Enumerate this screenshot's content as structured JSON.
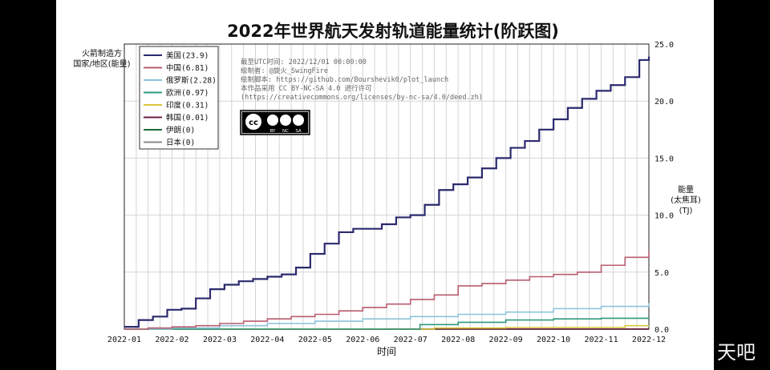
{
  "chart_data": {
    "type": "line",
    "title": "2022年世界航天发射轨道能量统计(阶跃图)",
    "xlabel": "时间",
    "ylabel_left": [
      "火箭制造方",
      "国家/地区(能量)"
    ],
    "ylabel_right": [
      "能量",
      "(太焦耳)",
      "(TJ)"
    ],
    "ylim": [
      0,
      25
    ],
    "yticks": [
      "0.0",
      "5.0",
      "10.0",
      "15.0",
      "20.0",
      "25.0"
    ],
    "xticks": [
      "2022-01",
      "2022-02",
      "2022-03",
      "2022-04",
      "2022-05",
      "2022-06",
      "2022-07",
      "2022-08",
      "2022-09",
      "2022-10",
      "2022-11",
      "2022-12"
    ],
    "grid": true,
    "legend_position": "top-left",
    "annotation": [
      "截至UTC时间: 2022/12/01 00:00:00",
      "绘制者: @旋火_SwingFire",
      "绘制脚本: https://github.com/Bourshevik0/plot_launch",
      "本作品采用 CC BY-NC-SA 4.0 进行许可",
      "(https://creativecommons.org/licenses/by-nc-sa/4.0/deed.zh)"
    ],
    "license_badge": [
      "cc",
      "BY",
      "NC",
      "SA"
    ],
    "series": [
      {
        "name": "美国(23.9)",
        "color": "#2b2a6e",
        "x": [
          0,
          0.3,
          0.6,
          0.9,
          1.2,
          1.5,
          1.8,
          2.1,
          2.4,
          2.7,
          3.0,
          3.3,
          3.6,
          3.9,
          4.2,
          4.5,
          4.8,
          5.1,
          5.4,
          5.7,
          6.0,
          6.3,
          6.6,
          6.9,
          7.2,
          7.5,
          7.8,
          8.1,
          8.4,
          8.7,
          9.0,
          9.3,
          9.6,
          9.9,
          10.2,
          10.5,
          10.8,
          11.0
        ],
        "y": [
          0.2,
          0.8,
          1.1,
          1.7,
          1.8,
          2.7,
          3.5,
          3.9,
          4.2,
          4.4,
          4.6,
          4.8,
          5.4,
          6.6,
          7.5,
          8.5,
          8.8,
          8.8,
          9.2,
          9.8,
          10.0,
          10.9,
          12.2,
          12.7,
          13.3,
          14.1,
          15.0,
          15.9,
          16.5,
          17.5,
          18.4,
          19.4,
          20.2,
          20.9,
          21.4,
          22.1,
          23.6,
          23.9
        ]
      },
      {
        "name": "中国(6.81)",
        "color": "#b85c6e",
        "x": [
          0,
          0.5,
          1.0,
          1.5,
          2.0,
          2.5,
          3.0,
          3.5,
          4.0,
          4.5,
          5.0,
          5.5,
          6.0,
          6.5,
          7.0,
          7.5,
          8.0,
          8.5,
          9.0,
          9.5,
          10.0,
          10.5,
          11.0
        ],
        "y": [
          0.0,
          0.1,
          0.2,
          0.3,
          0.5,
          0.7,
          0.9,
          1.1,
          1.3,
          1.6,
          1.9,
          2.2,
          2.6,
          3.0,
          3.8,
          4.0,
          4.3,
          4.6,
          4.8,
          5.0,
          5.6,
          6.3,
          6.81
        ]
      },
      {
        "name": "俄罗斯(2.28)",
        "color": "#8cc4dc",
        "x": [
          0,
          1.0,
          2.0,
          3.0,
          4.0,
          5.0,
          6.0,
          7.0,
          8.0,
          9.0,
          10.0,
          11.0
        ],
        "y": [
          0.0,
          0.1,
          0.3,
          0.5,
          0.7,
          0.9,
          1.1,
          1.3,
          1.5,
          1.8,
          2.0,
          2.28
        ]
      },
      {
        "name": "欧洲(0.97)",
        "color": "#2f9a7e",
        "x": [
          0,
          5.6,
          6.2,
          7.0,
          8.0,
          9.0,
          10.0,
          11.0
        ],
        "y": [
          0.0,
          0.0,
          0.4,
          0.6,
          0.8,
          0.9,
          0.95,
          0.97
        ]
      },
      {
        "name": "印度(0.31)",
        "color": "#d8c83a",
        "x": [
          0,
          6.5,
          8.0,
          10.5,
          11.0
        ],
        "y": [
          0.0,
          0.1,
          0.15,
          0.3,
          0.31
        ]
      },
      {
        "name": "韩国(0.01)",
        "color": "#6a1e44",
        "x": [
          0,
          5.5,
          11.0
        ],
        "y": [
          0.0,
          0.01,
          0.01
        ]
      },
      {
        "name": "伊朗(0)",
        "color": "#1e6b3a",
        "x": [
          0,
          11.0
        ],
        "y": [
          0,
          0
        ]
      },
      {
        "name": "日本(0)",
        "color": "#8a8a8a",
        "x": [
          0,
          11.0
        ],
        "y": [
          0,
          0
        ]
      }
    ]
  },
  "watermark": "天吧"
}
